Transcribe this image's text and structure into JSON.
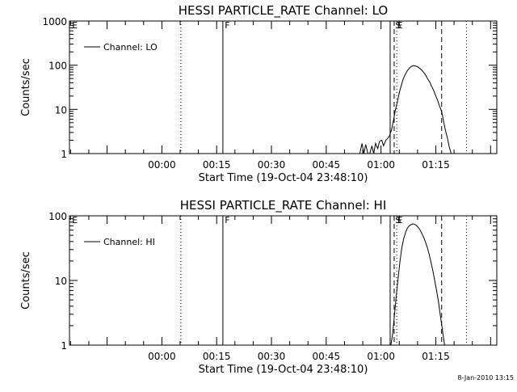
{
  "footer": {
    "timestamp": "8-Jan-2010 13:15"
  },
  "chart_data": [
    {
      "type": "line",
      "title": "HESSI PARTICLE_RATE Channel: LO",
      "xlabel": "Start Time (19-Oct-04 23:48:10)",
      "ylabel": "Counts/sec",
      "y_scale": "log",
      "ylim": [
        1,
        1000
      ],
      "y_ticks": [
        {
          "value": 1,
          "label": "1"
        },
        {
          "value": 10,
          "label": "10"
        },
        {
          "value": 100,
          "label": "100"
        },
        {
          "value": 1000,
          "label": "1000"
        }
      ],
      "xlim_minutes": [
        -13.5,
        103.5
      ],
      "x_ticks": [
        {
          "minutes": 11.8,
          "label": "00:00"
        },
        {
          "minutes": 26.8,
          "label": "00:15"
        },
        {
          "minutes": 41.8,
          "label": "00:30"
        },
        {
          "minutes": 56.8,
          "label": "00:45"
        },
        {
          "minutes": 71.8,
          "label": "01:00"
        },
        {
          "minutes": 86.8,
          "label": "01:15"
        }
      ],
      "legend": {
        "label": "Channel: LO",
        "position": "top-left"
      },
      "markers": [
        {
          "minutes": 17.0,
          "style": "dotted"
        },
        {
          "minutes": 28.5,
          "style": "solid"
        },
        {
          "minutes": 74.3,
          "style": "solid"
        },
        {
          "minutes": 75.4,
          "style": "dashed"
        },
        {
          "minutes": 76.1,
          "style": "dotted"
        },
        {
          "minutes": 88.4,
          "style": "dashed"
        },
        {
          "minutes": 95.2,
          "style": "dotted"
        }
      ],
      "flags": [
        {
          "minutes": -13.0,
          "label": "E"
        },
        {
          "minutes": 28.8,
          "label": "F"
        },
        {
          "minutes": 75.5,
          "label": "S"
        },
        {
          "minutes": 76.0,
          "label": "E"
        }
      ],
      "series": [
        {
          "x": [
            66.0,
            66.6,
            67.1,
            67.6,
            68.2,
            68.7,
            69.3,
            69.8,
            70.3,
            70.9,
            71.4,
            72.0,
            72.5,
            73.1,
            73.6,
            74.1,
            74.7,
            75.2,
            75.7,
            76.3,
            76.8,
            77.4,
            77.9,
            78.5,
            79.0,
            79.6,
            80.1,
            80.7,
            81.2,
            81.8,
            82.3,
            82.9,
            83.4,
            84.0,
            84.5,
            85.1,
            85.6,
            86.2,
            86.7,
            87.3,
            87.8,
            88.4,
            88.9,
            89.4,
            90.0,
            90.5,
            91.0
          ],
          "y": [
            1.0,
            1.7,
            1.0,
            1.6,
            1.0,
            1.0,
            1.5,
            1.0,
            1.7,
            1.3,
            1.9,
            2.0,
            1.5,
            2.0,
            2.2,
            2.5,
            3.5,
            5.5,
            9.5,
            15.0,
            24.0,
            36.0,
            50.0,
            63.0,
            75.0,
            86.0,
            94.0,
            98.0,
            96.0,
            92.0,
            86.0,
            78.0,
            70.0,
            60.0,
            50.0,
            42.0,
            34.0,
            27.0,
            21.0,
            16.0,
            12.0,
            9.0,
            5.5,
            3.5,
            2.2,
            1.4,
            1.0
          ]
        }
      ]
    },
    {
      "type": "line",
      "title": "HESSI PARTICLE_RATE Channel: HI",
      "xlabel": "Start Time (19-Oct-04 23:48:10)",
      "ylabel": "Counts/sec",
      "y_scale": "log",
      "ylim": [
        1,
        100
      ],
      "y_ticks": [
        {
          "value": 1,
          "label": "1"
        },
        {
          "value": 10,
          "label": "10"
        },
        {
          "value": 100,
          "label": "100"
        }
      ],
      "xlim_minutes": [
        -13.5,
        103.5
      ],
      "x_ticks": [
        {
          "minutes": 11.8,
          "label": "00:00"
        },
        {
          "minutes": 26.8,
          "label": "00:15"
        },
        {
          "minutes": 41.8,
          "label": "00:30"
        },
        {
          "minutes": 56.8,
          "label": "00:45"
        },
        {
          "minutes": 71.8,
          "label": "01:00"
        },
        {
          "minutes": 86.8,
          "label": "01:15"
        }
      ],
      "legend": {
        "label": "Channel: HI",
        "position": "top-left"
      },
      "markers": [
        {
          "minutes": 17.0,
          "style": "dotted"
        },
        {
          "minutes": 28.5,
          "style": "solid"
        },
        {
          "minutes": 74.3,
          "style": "solid"
        },
        {
          "minutes": 75.4,
          "style": "dashed"
        },
        {
          "minutes": 76.1,
          "style": "dotted"
        },
        {
          "minutes": 88.4,
          "style": "dashed"
        },
        {
          "minutes": 95.2,
          "style": "dotted"
        }
      ],
      "flags": [
        {
          "minutes": -13.0,
          "label": "E"
        },
        {
          "minutes": 28.8,
          "label": "F"
        },
        {
          "minutes": 75.5,
          "label": "S"
        },
        {
          "minutes": 76.0,
          "label": "E"
        }
      ],
      "series": [
        {
          "x": [
            74.5,
            75.0,
            75.5,
            76.0,
            76.5,
            77.0,
            77.5,
            78.0,
            78.5,
            79.0,
            79.5,
            80.0,
            80.5,
            81.0,
            81.5,
            82.0,
            82.5,
            83.0,
            83.5,
            84.0,
            84.5,
            85.0,
            85.5,
            86.0,
            86.5,
            87.0,
            87.5,
            88.0,
            88.5,
            89.0,
            89.2
          ],
          "y": [
            1.0,
            1.5,
            3.0,
            6.0,
            11.0,
            20.0,
            32.0,
            44.0,
            55.0,
            64.0,
            70.0,
            73.0,
            75.0,
            74.0,
            71.0,
            66.0,
            60.0,
            53.0,
            46.0,
            39.0,
            32.0,
            25.0,
            19.0,
            14.0,
            10.0,
            7.0,
            4.8,
            3.0,
            1.9,
            1.2,
            1.0
          ]
        }
      ]
    }
  ]
}
